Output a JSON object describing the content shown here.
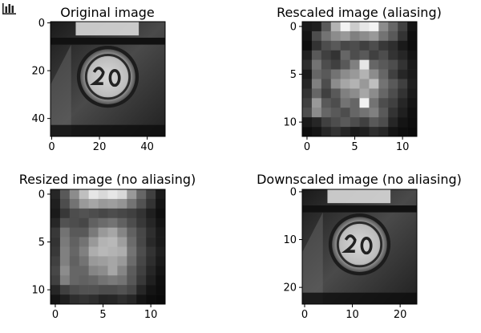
{
  "toolbar": {
    "icon": "bar-chart-icon"
  },
  "chart_data": [
    {
      "type": "heatmap",
      "title": "Original image",
      "xlabel": "",
      "ylabel": "",
      "shape": [
        48,
        48
      ],
      "xlim": [
        -0.5,
        47.5
      ],
      "ylim": [
        47.5,
        -0.5
      ],
      "xticks": [
        0,
        20,
        40
      ],
      "yticks": [
        0,
        20,
        40
      ],
      "colormap": "gray",
      "content": "grayscale photo of a round '20' speed-limit road sign"
    },
    {
      "type": "heatmap",
      "title": "Rescaled image (aliasing)",
      "xlabel": "",
      "ylabel": "",
      "shape": [
        12,
        12
      ],
      "xlim": [
        -0.5,
        11.5
      ],
      "ylim": [
        11.5,
        -0.5
      ],
      "xticks": [
        0,
        5,
        10
      ],
      "yticks": [
        0,
        5,
        10
      ],
      "colormap": "gray",
      "values": [
        [
          0.1,
          0.12,
          0.35,
          0.7,
          0.95,
          0.8,
          0.9,
          0.95,
          0.55,
          0.4,
          0.25,
          0.08
        ],
        [
          0.08,
          0.3,
          0.45,
          0.55,
          0.6,
          0.5,
          0.55,
          0.6,
          0.45,
          0.35,
          0.2,
          0.06
        ],
        [
          0.05,
          0.2,
          0.3,
          0.35,
          0.28,
          0.3,
          0.25,
          0.3,
          0.22,
          0.18,
          0.1,
          0.05
        ],
        [
          0.12,
          0.35,
          0.25,
          0.2,
          0.4,
          0.3,
          0.35,
          0.25,
          0.3,
          0.2,
          0.15,
          0.08
        ],
        [
          0.18,
          0.45,
          0.3,
          0.25,
          0.35,
          0.5,
          0.9,
          0.4,
          0.35,
          0.3,
          0.2,
          0.1
        ],
        [
          0.1,
          0.4,
          0.35,
          0.45,
          0.55,
          0.6,
          0.7,
          0.55,
          0.4,
          0.25,
          0.15,
          0.1
        ],
        [
          0.15,
          0.5,
          0.3,
          0.55,
          0.65,
          0.7,
          0.6,
          0.75,
          0.45,
          0.35,
          0.25,
          0.12
        ],
        [
          0.2,
          0.4,
          0.25,
          0.35,
          0.5,
          0.55,
          0.65,
          0.55,
          0.4,
          0.3,
          0.2,
          0.1
        ],
        [
          0.25,
          0.6,
          0.35,
          0.3,
          0.45,
          0.4,
          0.95,
          0.45,
          0.3,
          0.25,
          0.15,
          0.08
        ],
        [
          0.3,
          0.55,
          0.4,
          0.35,
          0.3,
          0.4,
          0.45,
          0.5,
          0.35,
          0.2,
          0.12,
          0.06
        ],
        [
          0.1,
          0.15,
          0.25,
          0.3,
          0.35,
          0.3,
          0.25,
          0.35,
          0.3,
          0.15,
          0.08,
          0.05
        ],
        [
          0.05,
          0.08,
          0.15,
          0.2,
          0.15,
          0.1,
          0.12,
          0.18,
          0.15,
          0.08,
          0.05,
          0.04
        ]
      ]
    },
    {
      "type": "heatmap",
      "title": "Resized image (no aliasing)",
      "xlabel": "",
      "ylabel": "",
      "shape": [
        12,
        12
      ],
      "xlim": [
        -0.5,
        11.5
      ],
      "ylim": [
        11.5,
        -0.5
      ],
      "xticks": [
        0,
        5,
        10
      ],
      "yticks": [
        0,
        5,
        10
      ],
      "colormap": "gray",
      "values": [
        [
          0.15,
          0.35,
          0.55,
          0.75,
          0.9,
          0.85,
          0.9,
          0.85,
          0.6,
          0.4,
          0.25,
          0.1
        ],
        [
          0.12,
          0.3,
          0.45,
          0.6,
          0.65,
          0.6,
          0.62,
          0.58,
          0.45,
          0.32,
          0.2,
          0.08
        ],
        [
          0.1,
          0.22,
          0.3,
          0.32,
          0.3,
          0.28,
          0.3,
          0.28,
          0.25,
          0.2,
          0.12,
          0.06
        ],
        [
          0.15,
          0.32,
          0.3,
          0.28,
          0.38,
          0.42,
          0.45,
          0.38,
          0.3,
          0.22,
          0.15,
          0.08
        ],
        [
          0.22,
          0.45,
          0.35,
          0.35,
          0.48,
          0.6,
          0.65,
          0.52,
          0.38,
          0.28,
          0.18,
          0.1
        ],
        [
          0.2,
          0.48,
          0.38,
          0.45,
          0.6,
          0.7,
          0.72,
          0.62,
          0.42,
          0.28,
          0.16,
          0.1
        ],
        [
          0.22,
          0.5,
          0.4,
          0.5,
          0.68,
          0.72,
          0.7,
          0.68,
          0.45,
          0.3,
          0.2,
          0.12
        ],
        [
          0.25,
          0.5,
          0.38,
          0.45,
          0.6,
          0.62,
          0.65,
          0.6,
          0.42,
          0.28,
          0.18,
          0.1
        ],
        [
          0.28,
          0.55,
          0.4,
          0.4,
          0.52,
          0.55,
          0.65,
          0.52,
          0.36,
          0.25,
          0.15,
          0.08
        ],
        [
          0.25,
          0.5,
          0.4,
          0.38,
          0.4,
          0.45,
          0.48,
          0.45,
          0.34,
          0.22,
          0.12,
          0.06
        ],
        [
          0.15,
          0.25,
          0.3,
          0.32,
          0.32,
          0.3,
          0.3,
          0.32,
          0.28,
          0.15,
          0.08,
          0.05
        ],
        [
          0.08,
          0.12,
          0.18,
          0.2,
          0.18,
          0.14,
          0.15,
          0.18,
          0.15,
          0.08,
          0.05,
          0.04
        ]
      ]
    },
    {
      "type": "heatmap",
      "title": "Downscaled image (no aliasing)",
      "xlabel": "",
      "ylabel": "",
      "shape": [
        24,
        24
      ],
      "xlim": [
        -0.5,
        23.5
      ],
      "ylim": [
        23.5,
        -0.5
      ],
      "xticks": [
        0,
        10,
        20
      ],
      "yticks": [
        0,
        10,
        20
      ],
      "colormap": "gray",
      "content": "grayscale '20' speed-limit sign, 2x downscaled"
    }
  ]
}
